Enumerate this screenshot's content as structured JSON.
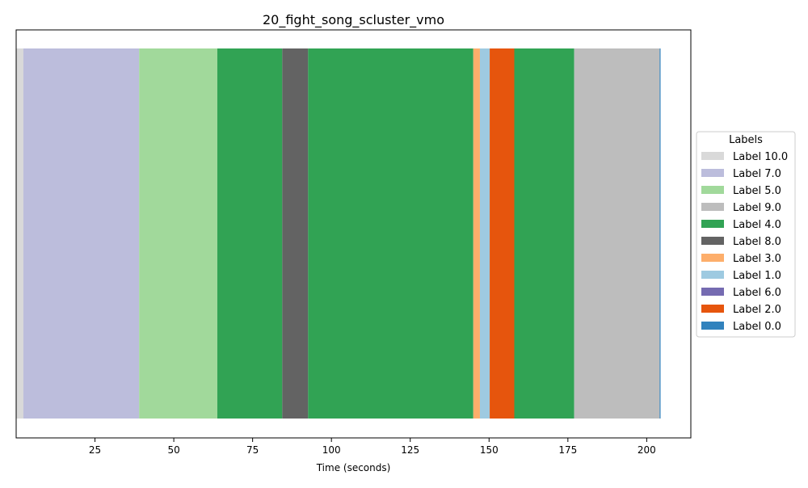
{
  "chart_data": {
    "type": "segment-timeline",
    "title": "20_fight_song_scluster_vmo",
    "xlabel": "Time (seconds)",
    "ylabel": "",
    "xlim": [
      0,
      214
    ],
    "xticks": [
      25,
      50,
      75,
      100,
      125,
      150,
      175,
      200
    ],
    "grid": false,
    "legend": {
      "title": "Labels",
      "placement": "right",
      "entries": [
        {
          "label": "Label 10.0",
          "color": "#d9d9d9"
        },
        {
          "label": "Label 7.0",
          "color": "#bcbddc"
        },
        {
          "label": "Label 5.0",
          "color": "#a1d99b"
        },
        {
          "label": "Label 9.0",
          "color": "#bdbdbd"
        },
        {
          "label": "Label 4.0",
          "color": "#31a354"
        },
        {
          "label": "Label 8.0",
          "color": "#636363"
        },
        {
          "label": "Label 3.0",
          "color": "#fdae6b"
        },
        {
          "label": "Label 1.0",
          "color": "#9ecae1"
        },
        {
          "label": "Label 6.0",
          "color": "#756bb1"
        },
        {
          "label": "Label 2.0",
          "color": "#e6550d"
        },
        {
          "label": "Label 0.0",
          "color": "#3182bd"
        }
      ]
    },
    "segments": [
      {
        "start": 0.0,
        "end": 2.3,
        "label": "Label 10.0"
      },
      {
        "start": 2.3,
        "end": 39.0,
        "label": "Label 7.0"
      },
      {
        "start": 39.0,
        "end": 63.8,
        "label": "Label 5.0"
      },
      {
        "start": 63.8,
        "end": 84.4,
        "label": "Label 4.0"
      },
      {
        "start": 84.4,
        "end": 92.6,
        "label": "Label 8.0"
      },
      {
        "start": 92.6,
        "end": 145.0,
        "label": "Label 4.0"
      },
      {
        "start": 145.0,
        "end": 147.1,
        "label": "Label 3.0"
      },
      {
        "start": 147.1,
        "end": 150.2,
        "label": "Label 1.0"
      },
      {
        "start": 150.2,
        "end": 158.0,
        "label": "Label 2.0"
      },
      {
        "start": 158.0,
        "end": 177.0,
        "label": "Label 4.0"
      },
      {
        "start": 177.0,
        "end": 204.1,
        "label": "Label 9.0"
      },
      {
        "start": 204.1,
        "end": 204.4,
        "label": "Label 0.0"
      }
    ]
  }
}
